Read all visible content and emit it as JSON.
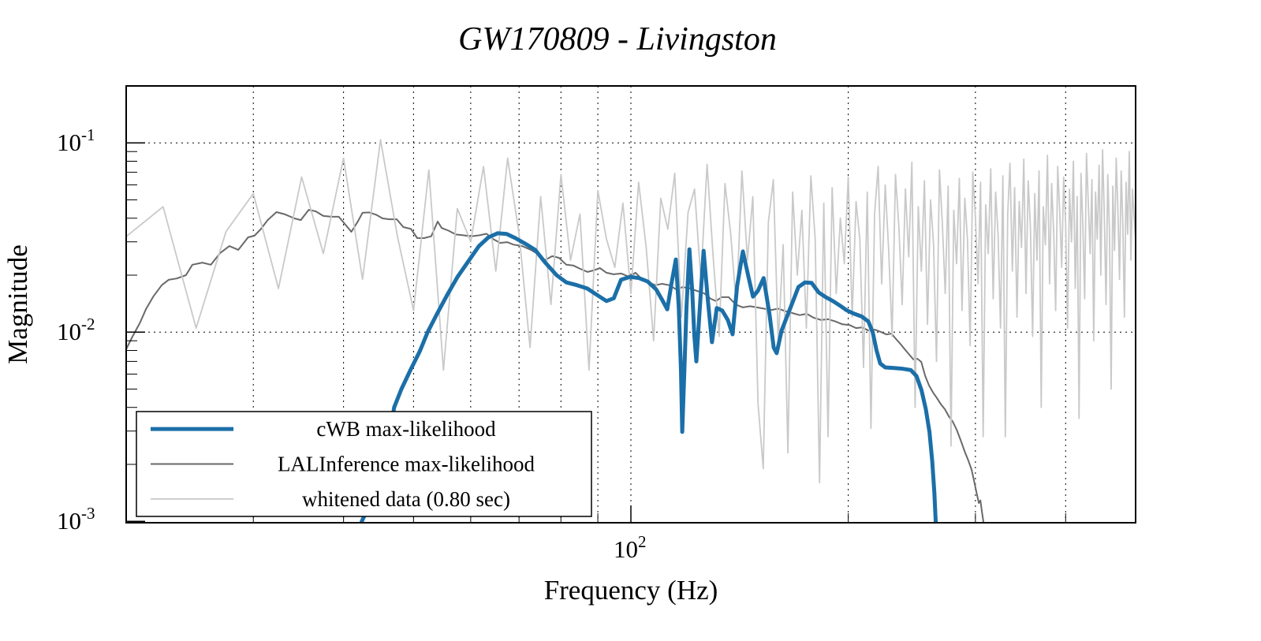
{
  "chart_data": {
    "type": "line",
    "title": "GW170809 - Livingston",
    "xlabel": "Frequency (Hz)",
    "ylabel": "Magnitude",
    "x_scale": "log",
    "y_scale": "log",
    "xlim": [
      20,
      500
    ],
    "ylim": [
      0.000983,
      0.2
    ],
    "grid": "dotted",
    "legend_position": "bottom-left",
    "frame_color": "#000000",
    "x_gridlines": [
      30,
      40,
      50,
      60,
      70,
      80,
      90,
      100,
      200,
      300,
      400
    ],
    "y_gridlines": [
      0.1,
      0.01
    ],
    "x_major_ticks": [
      {
        "value": 100,
        "mantissa": "10",
        "exponent": "2"
      }
    ],
    "x_minor_ticks": [
      30,
      40,
      50,
      60,
      70,
      80,
      90,
      200,
      300,
      400,
      500
    ],
    "y_major_ticks": [
      {
        "value": 0.1,
        "mantissa": "10",
        "exponent": "-1"
      },
      {
        "value": 0.01,
        "mantissa": "10",
        "exponent": "-2"
      },
      {
        "value": 0.001,
        "mantissa": "10",
        "exponent": "-3"
      }
    ],
    "y_minor_ticks": [
      0.002,
      0.003,
      0.004,
      0.005,
      0.006,
      0.007,
      0.008,
      0.009,
      0.02,
      0.03,
      0.04,
      0.05,
      0.06,
      0.07,
      0.08,
      0.09
    ],
    "series": [
      {
        "name": "LALInference max-likelihood",
        "color": "#696969",
        "width": 2,
        "points": [
          [
            20.0,
            0.00812
          ],
          [
            20.4,
            0.00946
          ],
          [
            20.9,
            0.0112
          ],
          [
            21.3,
            0.0132
          ],
          [
            21.8,
            0.0154
          ],
          [
            22.4,
            0.0177
          ],
          [
            22.9,
            0.0189
          ],
          [
            23.5,
            0.0192
          ],
          [
            24.2,
            0.02
          ],
          [
            24.7,
            0.0227
          ],
          [
            25.5,
            0.0233
          ],
          [
            26.2,
            0.0227
          ],
          [
            27.0,
            0.0262
          ],
          [
            27.8,
            0.0285
          ],
          [
            28.6,
            0.0272
          ],
          [
            29.5,
            0.0317
          ],
          [
            30.1,
            0.0323
          ],
          [
            30.7,
            0.0349
          ],
          [
            31.4,
            0.0391
          ],
          [
            32.3,
            0.0431
          ],
          [
            33.2,
            0.0419
          ],
          [
            34.2,
            0.0399
          ],
          [
            34.9,
            0.0391
          ],
          [
            35.8,
            0.0443
          ],
          [
            36.6,
            0.0435
          ],
          [
            37.5,
            0.0411
          ],
          [
            38.5,
            0.0407
          ],
          [
            39.4,
            0.0407
          ],
          [
            40.4,
            0.0363
          ],
          [
            41.0,
            0.0339
          ],
          [
            41.8,
            0.038
          ],
          [
            42.5,
            0.0427
          ],
          [
            43.4,
            0.0429
          ],
          [
            44.4,
            0.0417
          ],
          [
            45.3,
            0.0399
          ],
          [
            46.3,
            0.0395
          ],
          [
            47.4,
            0.0395
          ],
          [
            48.4,
            0.0359
          ],
          [
            49.6,
            0.0351
          ],
          [
            50.6,
            0.0314
          ],
          [
            51.7,
            0.0314
          ],
          [
            52.9,
            0.0321
          ],
          [
            54.0,
            0.0384
          ],
          [
            54.7,
            0.0355
          ],
          [
            55.9,
            0.0344
          ],
          [
            57.2,
            0.0328
          ],
          [
            58.6,
            0.0325
          ],
          [
            60.1,
            0.0321
          ],
          [
            61.7,
            0.0325
          ],
          [
            63.1,
            0.0331
          ],
          [
            64.4,
            0.0311
          ],
          [
            65.9,
            0.0296
          ],
          [
            67.4,
            0.0299
          ],
          [
            68.8,
            0.029
          ],
          [
            70.7,
            0.0285
          ],
          [
            72.7,
            0.0272
          ],
          [
            74.5,
            0.0257
          ],
          [
            76.0,
            0.024
          ],
          [
            77.8,
            0.0252
          ],
          [
            79.5,
            0.0247
          ],
          [
            81.4,
            0.0227
          ],
          [
            83.2,
            0.0225
          ],
          [
            85.1,
            0.0216
          ],
          [
            87.1,
            0.0208
          ],
          [
            88.8,
            0.0212
          ],
          [
            90.6,
            0.0218
          ],
          [
            92.5,
            0.0206
          ],
          [
            94.6,
            0.0202
          ],
          [
            97.0,
            0.0204
          ],
          [
            99.4,
            0.0196
          ],
          [
            101.5,
            0.0206
          ],
          [
            103.5,
            0.0191
          ],
          [
            105.6,
            0.0184
          ],
          [
            108.0,
            0.0177
          ],
          [
            110.5,
            0.018
          ],
          [
            113.0,
            0.0177
          ],
          [
            115.6,
            0.0168
          ],
          [
            118.0,
            0.0173
          ],
          [
            120.8,
            0.017
          ],
          [
            123.5,
            0.0165
          ],
          [
            126.4,
            0.016
          ],
          [
            129.0,
            0.015
          ],
          [
            131.2,
            0.0146
          ],
          [
            133.5,
            0.0153
          ],
          [
            136.6,
            0.0153
          ],
          [
            139.7,
            0.014
          ],
          [
            142.9,
            0.0135
          ],
          [
            146.2,
            0.0137
          ],
          [
            149.5,
            0.0135
          ],
          [
            152.9,
            0.0133
          ],
          [
            156.5,
            0.0131
          ],
          [
            160.0,
            0.0133
          ],
          [
            163.7,
            0.0129
          ],
          [
            167.4,
            0.0126
          ],
          [
            171.3,
            0.0123
          ],
          [
            175.2,
            0.0125
          ],
          [
            179.2,
            0.0119
          ],
          [
            183.3,
            0.0116
          ],
          [
            187.6,
            0.0117
          ],
          [
            191.8,
            0.0114
          ],
          [
            196.3,
            0.011
          ],
          [
            200.8,
            0.0109
          ],
          [
            205.0,
            0.0105
          ],
          [
            209.0,
            0.0106
          ],
          [
            213.3,
            0.0102
          ],
          [
            217.7,
            0.0103
          ],
          [
            222.1,
            0.01
          ],
          [
            226.0,
            0.00972
          ],
          [
            229.5,
            0.00982
          ],
          [
            232.9,
            0.00919
          ],
          [
            236.5,
            0.0086
          ],
          [
            240.0,
            0.00804
          ],
          [
            243.1,
            0.00759
          ],
          [
            246.2,
            0.00716
          ],
          [
            249.3,
            0.00723
          ],
          [
            252.4,
            0.00696
          ],
          [
            255.6,
            0.00586
          ],
          [
            258.8,
            0.00522
          ],
          [
            262.1,
            0.00479
          ],
          [
            265.4,
            0.00448
          ],
          [
            268.8,
            0.00415
          ],
          [
            272.2,
            0.00391
          ],
          [
            275.6,
            0.00359
          ],
          [
            279.1,
            0.00336
          ],
          [
            282.6,
            0.00305
          ],
          [
            286.2,
            0.00269
          ],
          [
            289.8,
            0.00235
          ],
          [
            293.5,
            0.00208
          ],
          [
            296.4,
            0.00187
          ],
          [
            298.7,
            0.00164
          ],
          [
            300.9,
            0.00143
          ],
          [
            303.3,
            0.00125
          ],
          [
            304.8,
            0.00129
          ],
          [
            306.4,
            0.00111
          ],
          [
            307.9,
            0.00098
          ]
        ]
      },
      {
        "name": "whitened data (0.80 sec)",
        "color": "#c9c9c9",
        "width": 1.8,
        "f_start": 20,
        "f_step": 2.5,
        "values": [
          0.032,
          0.046,
          0.0105,
          0.034,
          0.054,
          0.017,
          0.066,
          0.026,
          0.083,
          0.019,
          0.104,
          0.032,
          0.013,
          0.072,
          0.0063,
          0.045,
          0.03,
          0.075,
          0.021,
          0.083,
          0.033,
          0.0083,
          0.052,
          0.014,
          0.068,
          0.024,
          0.042,
          0.0063,
          0.056,
          0.031,
          0.022,
          0.048,
          0.016,
          0.062,
          0.028,
          0.009,
          0.051,
          0.035,
          0.069,
          0.012,
          0.043,
          0.057,
          0.019,
          0.077,
          0.025,
          0.0095,
          0.061,
          0.033,
          0.0135,
          0.071,
          0.024,
          0.052,
          0.0042,
          0.0019,
          0.038,
          0.064,
          0.0088,
          0.029,
          0.0023,
          0.055,
          0.02,
          0.044,
          0.0105,
          0.067,
          0.031,
          0.0016,
          0.048,
          0.0028,
          0.058,
          0.016,
          0.04,
          0.023,
          0.066,
          0.012,
          0.049,
          0.031,
          0.0065,
          0.055,
          0.0031,
          0.042,
          0.075,
          0.018,
          0.06,
          0.027,
          0.0095,
          0.068,
          0.036,
          0.014,
          0.057,
          0.025,
          0.079,
          0.004,
          0.046,
          0.021,
          0.063,
          0.011,
          0.05,
          0.029,
          0.007,
          0.072,
          0.037,
          0.016,
          0.059,
          0.0025,
          0.044,
          0.023,
          0.065,
          0.013,
          0.051,
          0.031,
          0.0085,
          0.07,
          0.04,
          0.018,
          0.062,
          0.0028,
          0.047,
          0.026,
          0.073,
          0.015,
          0.055,
          0.033,
          0.0105,
          0.067,
          0.0028,
          0.042,
          0.078,
          0.021,
          0.058,
          0.012,
          0.049,
          0.028,
          0.082,
          0.016,
          0.063,
          0.036,
          0.0095,
          0.054,
          0.024,
          0.071,
          0.004,
          0.046,
          0.029,
          0.086,
          0.018,
          0.061,
          0.034,
          0.013,
          0.075,
          0.044,
          0.022,
          0.066,
          0.037,
          0.0105,
          0.057,
          0.03,
          0.08,
          0.017,
          0.052,
          0.0035,
          0.069,
          0.038,
          0.015,
          0.088,
          0.048,
          0.026,
          0.064,
          0.009,
          0.055,
          0.031,
          0.076,
          0.02,
          0.092,
          0.042,
          0.014,
          0.068,
          0.035,
          0.005,
          0.059,
          0.027,
          0.083,
          0.045,
          0.019,
          0.071,
          0.038,
          0.012,
          0.062,
          0.033,
          0.09,
          0.024,
          0.057,
          0.041,
          0.031
        ]
      },
      {
        "name": "cWB max-likelihood",
        "color": "#1b6fa8",
        "width": 5,
        "points": [
          [
            42.3,
            0.00098
          ],
          [
            43.2,
            0.00117
          ],
          [
            44.2,
            0.00146
          ],
          [
            45.1,
            0.00185
          ],
          [
            46.0,
            0.0024
          ],
          [
            47.0,
            0.004
          ],
          [
            48.1,
            0.005
          ],
          [
            49.5,
            0.0063
          ],
          [
            51.0,
            0.0079
          ],
          [
            52.3,
            0.01
          ],
          [
            53.9,
            0.0125
          ],
          [
            55.6,
            0.0156
          ],
          [
            57.5,
            0.0195
          ],
          [
            59.6,
            0.0238
          ],
          [
            61.6,
            0.0285
          ],
          [
            63.5,
            0.0317
          ],
          [
            65.4,
            0.0333
          ],
          [
            67.3,
            0.033
          ],
          [
            69.2,
            0.0314
          ],
          [
            71.3,
            0.0294
          ],
          [
            73.7,
            0.0272
          ],
          [
            76.1,
            0.0233
          ],
          [
            78.9,
            0.02
          ],
          [
            81.4,
            0.0183
          ],
          [
            84.2,
            0.0177
          ],
          [
            87.0,
            0.017
          ],
          [
            89.8,
            0.0157
          ],
          [
            92.5,
            0.0146
          ],
          [
            94.7,
            0.0151
          ],
          [
            96.9,
            0.0189
          ],
          [
            99.7,
            0.0196
          ],
          [
            102.6,
            0.0193
          ],
          [
            105.5,
            0.0185
          ],
          [
            108.4,
            0.0168
          ],
          [
            110.4,
            0.0149
          ],
          [
            112.3,
            0.0132
          ],
          [
            113.8,
            0.018
          ],
          [
            115.4,
            0.0242
          ],
          [
            116.5,
            0.0135
          ],
          [
            117.3,
            0.00627
          ],
          [
            117.8,
            0.00297
          ],
          [
            118.6,
            0.00627
          ],
          [
            119.4,
            0.0135
          ],
          [
            120.5,
            0.0274
          ],
          [
            121.6,
            0.0164
          ],
          [
            122.4,
            0.00965
          ],
          [
            123.2,
            0.007
          ],
          [
            124.4,
            0.0123
          ],
          [
            126.1,
            0.0269
          ],
          [
            127.8,
            0.0149
          ],
          [
            129.5,
            0.00885
          ],
          [
            131.5,
            0.0134
          ],
          [
            133.8,
            0.013
          ],
          [
            136.2,
            0.0116
          ],
          [
            138.3,
            0.00974
          ],
          [
            140.3,
            0.0175
          ],
          [
            142.9,
            0.0267
          ],
          [
            145.3,
            0.02
          ],
          [
            147.6,
            0.0154
          ],
          [
            149.9,
            0.0165
          ],
          [
            152.7,
            0.0193
          ],
          [
            155.6,
            0.0124
          ],
          [
            157.7,
            0.00828
          ],
          [
            159.2,
            0.00774
          ],
          [
            161.7,
            0.0102
          ],
          [
            164.4,
            0.012
          ],
          [
            167.5,
            0.0144
          ],
          [
            170.6,
            0.0173
          ],
          [
            174.2,
            0.0183
          ],
          [
            177.9,
            0.0182
          ],
          [
            182.0,
            0.0162
          ],
          [
            186.2,
            0.0153
          ],
          [
            190.4,
            0.0146
          ],
          [
            194.8,
            0.0138
          ],
          [
            199.3,
            0.013
          ],
          [
            203.9,
            0.0125
          ],
          [
            208.7,
            0.0121
          ],
          [
            213.2,
            0.0114
          ],
          [
            216.2,
            0.01
          ],
          [
            218.8,
            0.00804
          ],
          [
            221.4,
            0.00683
          ],
          [
            225.0,
            0.00651
          ],
          [
            231.4,
            0.00646
          ],
          [
            237.9,
            0.0064
          ],
          [
            244.1,
            0.0063
          ],
          [
            248.6,
            0.00586
          ],
          [
            252.6,
            0.00493
          ],
          [
            256.1,
            0.00391
          ],
          [
            259.1,
            0.00297
          ],
          [
            261.4,
            0.00208
          ],
          [
            263.2,
            0.00142
          ],
          [
            264.4,
            0.00098
          ]
        ]
      }
    ],
    "legend_order": [
      "cWB max-likelihood",
      "LALInference max-likelihood",
      "whitened data (0.80 sec)"
    ]
  }
}
